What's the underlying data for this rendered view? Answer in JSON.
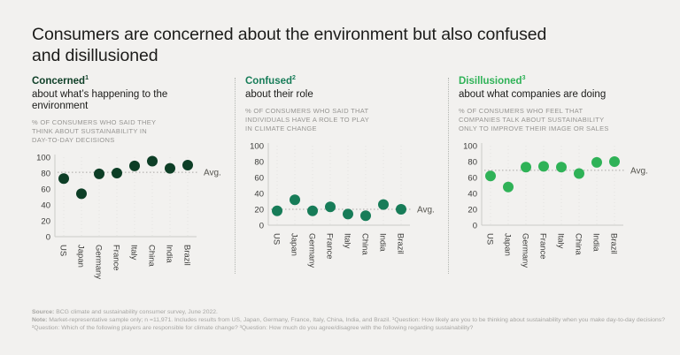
{
  "page": {
    "background": "#F2F1EF"
  },
  "title": {
    "line1": "Consumers are concerned about the environment but also confused",
    "line2": "and disillusioned"
  },
  "panels": [
    {
      "heading": "Concerned",
      "sup": "1",
      "color": "#0D3E26",
      "subheading": "about what’s happening to the environment",
      "desc_lines": [
        "% OF CONSUMERS WHO SAID THEY",
        "THINK ABOUT SUSTAINABILITY IN",
        "DAY-TO-DAY DECISIONS"
      ]
    },
    {
      "heading": "Confused",
      "sup": "2",
      "color": "#177C58",
      "subheading": "about their role",
      "desc_lines": [
        "% OF CONSUMERS WHO SAID THAT",
        "INDIVIDUALS HAVE A ROLE TO PLAY",
        "IN CLIMATE CHANGE"
      ]
    },
    {
      "heading": "Disillusioned",
      "sup": "3",
      "color": "#2FB257",
      "subheading": "about what companies are doing",
      "desc_lines": [
        "% OF CONSUMERS WHO FEEL THAT",
        "COMPANIES TALK ABOUT SUSTAINABILITY",
        "ONLY TO IMPROVE THEIR IMAGE OR SALES"
      ]
    }
  ],
  "chart_data": [
    {
      "type": "scatter",
      "title": "Concerned",
      "categories": [
        "US",
        "Japan",
        "Germany",
        "France",
        "Italy",
        "China",
        "India",
        "Brazil"
      ],
      "values": [
        73,
        54,
        79,
        80,
        89,
        95,
        86,
        90
      ],
      "avg_value": 81,
      "avg_label": "Avg.",
      "ylim": [
        0,
        100
      ],
      "yticks": [
        0,
        20,
        40,
        60,
        80,
        100
      ],
      "grid": "dotted-vertical",
      "point_color": "#0D3E26"
    },
    {
      "type": "scatter",
      "title": "Confused",
      "categories": [
        "US",
        "Japan",
        "Germany",
        "France",
        "Italy",
        "China",
        "India",
        "Brazil"
      ],
      "values": [
        18,
        32,
        18,
        23,
        14,
        12,
        26,
        20
      ],
      "avg_value": 20,
      "avg_label": "Avg.",
      "ylim": [
        0,
        100
      ],
      "yticks": [
        0,
        20,
        40,
        60,
        80,
        100
      ],
      "grid": "dotted-vertical",
      "point_color": "#177C58"
    },
    {
      "type": "scatter",
      "title": "Disillusioned",
      "categories": [
        "US",
        "Japan",
        "Germany",
        "France",
        "Italy",
        "China",
        "India",
        "Brazil"
      ],
      "values": [
        62,
        48,
        73,
        74,
        73,
        65,
        79,
        80
      ],
      "avg_value": 69,
      "avg_label": "Avg.",
      "ylim": [
        0,
        100
      ],
      "yticks": [
        0,
        20,
        40,
        60,
        80,
        100
      ],
      "grid": "dotted-vertical",
      "point_color": "#2FB257"
    }
  ],
  "footer": {
    "source_label": "Source:",
    "source_text": "BCG climate and sustainability consumer survey, June 2022.",
    "note_label": "Note:",
    "note_text": "Market-representative sample only; n =11,971. Includes results from US, Japan, Germany, France, Italy, China, India, and Brazil. ¹Question: How likely are you to be thinking about sustainability when you make day-to-day decisions?  ²Question: Which of the following players are responsible for climate change? ³Question: How much do you agree/disagree with the following regarding sustainability?"
  }
}
